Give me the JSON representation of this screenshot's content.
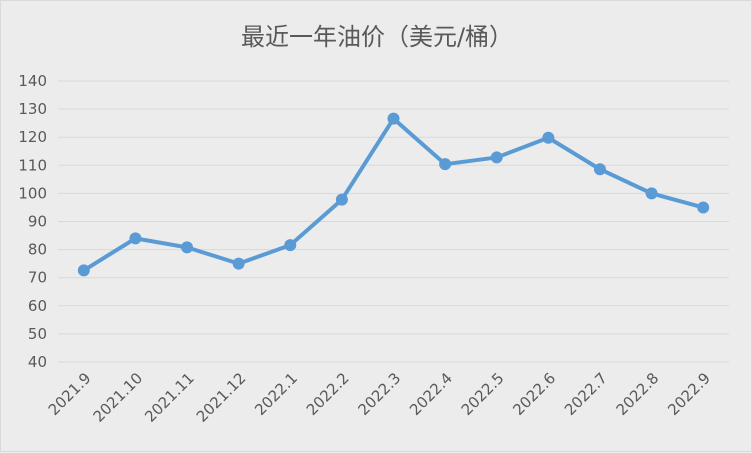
{
  "chart_data": {
    "type": "line",
    "title": "最近一年油价（美元/桶）",
    "categories": [
      "2021.9",
      "2021.10",
      "2021.11",
      "2021.12",
      "2022.1",
      "2022.2",
      "2022.3",
      "2022.4",
      "2022.5",
      "2022.6",
      "2022.7",
      "2022.8",
      "2022.9"
    ],
    "series": [
      {
        "values": [
          72.6,
          84.0,
          80.8,
          75.0,
          81.6,
          97.8,
          126.6,
          110.4,
          112.8,
          119.8,
          108.6,
          100.0,
          95.0
        ]
      }
    ],
    "ylim": [
      40,
      140
    ],
    "yticks": [
      40,
      50,
      60,
      70,
      80,
      90,
      100,
      110,
      120,
      130,
      140
    ],
    "grid": true,
    "colors": {
      "line": "#5b9bd5",
      "grid": "#d9d9d9",
      "text": "#595959"
    }
  }
}
